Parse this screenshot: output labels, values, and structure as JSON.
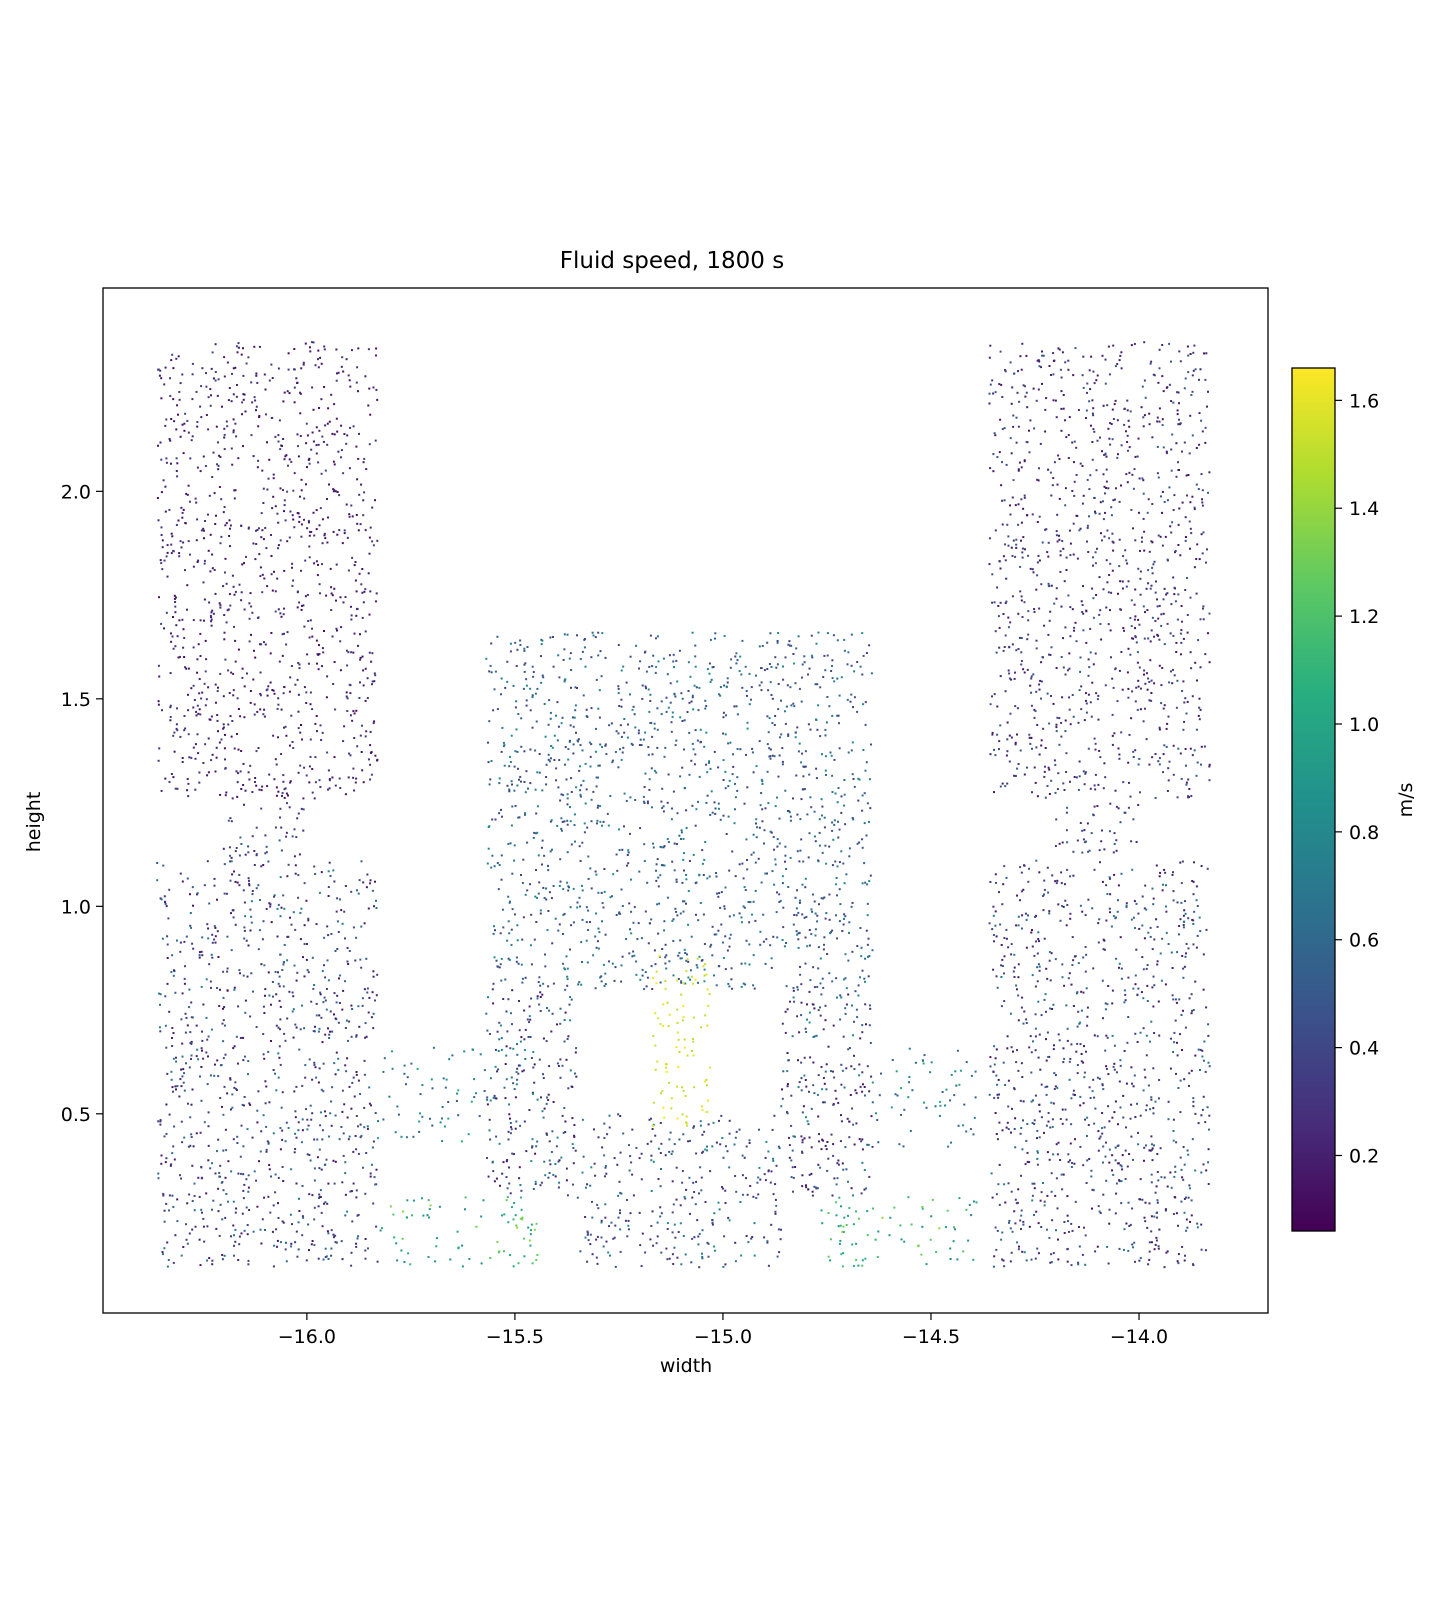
{
  "chart_data": {
    "type": "scatter",
    "title": "Fluid speed, 1800 s",
    "xlabel": "width",
    "ylabel": "height",
    "xlim": [
      -16.49,
      -13.69
    ],
    "ylim": [
      0.02,
      2.49
    ],
    "xticks": [
      -16.0,
      -15.5,
      -15.0,
      -14.5,
      -14.0
    ],
    "xtick_labels": [
      "−16.0",
      "−15.5",
      "−15.0",
      "−14.5",
      "−14.0"
    ],
    "yticks": [
      0.5,
      1.0,
      1.5,
      2.0
    ],
    "ytick_labels": [
      "0.5",
      "1.0",
      "1.5",
      "2.0"
    ],
    "grid": false,
    "colorbar": {
      "label": "m/s",
      "colormap": "viridis",
      "range": [
        0.06,
        1.66
      ],
      "ticks": [
        0.2,
        0.4,
        0.6,
        0.8,
        1.0,
        1.2,
        1.4,
        1.6
      ],
      "tick_labels": [
        "0.2",
        "0.4",
        "0.6",
        "0.8",
        "1.0",
        "1.2",
        "1.4",
        "1.6"
      ]
    },
    "regions": [
      {
        "name": "left-upper-tank",
        "x": [
          -16.36,
          -15.83
        ],
        "y": [
          1.26,
          2.36
        ],
        "density": 2600,
        "speed_range": [
          0.12,
          0.4
        ]
      },
      {
        "name": "left-neck",
        "x": [
          -16.2,
          -16.0
        ],
        "y": [
          1.11,
          1.25
        ],
        "density": 2400,
        "speed_range": [
          0.2,
          0.6
        ]
      },
      {
        "name": "left-lower-tank",
        "x": [
          -16.36,
          -15.83
        ],
        "y": [
          0.13,
          1.11
        ],
        "density": 2600,
        "speed_range": [
          0.15,
          0.75
        ]
      },
      {
        "name": "left-upper-duct",
        "x": [
          -15.83,
          -15.57
        ],
        "y": [
          0.42,
          0.66
        ],
        "density": 1400,
        "speed_range": [
          0.5,
          1.05
        ]
      },
      {
        "name": "left-lower-duct",
        "x": [
          -15.83,
          -15.57
        ],
        "y": [
          0.13,
          0.3
        ],
        "density": 1400,
        "speed_range": [
          0.8,
          1.45
        ]
      },
      {
        "name": "center-top-block",
        "x": [
          -15.57,
          -14.64
        ],
        "y": [
          0.8,
          1.66
        ],
        "density": 2600,
        "speed_range": [
          0.35,
          0.85
        ]
      },
      {
        "name": "center-left-column",
        "x": [
          -15.57,
          -15.35
        ],
        "y": [
          0.3,
          0.8
        ],
        "density": 3000,
        "speed_range": [
          0.15,
          0.85
        ]
      },
      {
        "name": "center-right-column",
        "x": [
          -14.86,
          -14.64
        ],
        "y": [
          0.3,
          0.8
        ],
        "density": 3000,
        "speed_range": [
          0.15,
          0.85
        ]
      },
      {
        "name": "center-bottom-band",
        "x": [
          -15.35,
          -14.86
        ],
        "y": [
          0.13,
          0.5
        ],
        "density": 2400,
        "speed_range": [
          0.25,
          0.85
        ]
      },
      {
        "name": "center-jet",
        "x": [
          -15.17,
          -15.03
        ],
        "y": [
          0.47,
          0.88
        ],
        "density": 2200,
        "speed_range": [
          1.5,
          1.66
        ]
      },
      {
        "name": "right-upper-duct",
        "x": [
          -14.64,
          -14.38
        ],
        "y": [
          0.42,
          0.66
        ],
        "density": 1400,
        "speed_range": [
          0.5,
          1.05
        ]
      },
      {
        "name": "right-lower-duct",
        "x": [
          -14.64,
          -14.38
        ],
        "y": [
          0.13,
          0.3
        ],
        "density": 1400,
        "speed_range": [
          0.8,
          1.45
        ]
      },
      {
        "name": "right-upper-tank",
        "x": [
          -14.36,
          -13.83
        ],
        "y": [
          1.26,
          2.36
        ],
        "density": 2600,
        "speed_range": [
          0.15,
          0.55
        ]
      },
      {
        "name": "right-neck",
        "x": [
          -14.2,
          -14.0
        ],
        "y": [
          1.11,
          1.25
        ],
        "density": 2400,
        "speed_range": [
          0.2,
          0.6
        ]
      },
      {
        "name": "right-lower-tank",
        "x": [
          -14.36,
          -13.83
        ],
        "y": [
          0.13,
          1.11
        ],
        "density": 2600,
        "speed_range": [
          0.15,
          0.75
        ]
      },
      {
        "name": "left-corner-hotspot",
        "x": [
          -15.56,
          -15.44
        ],
        "y": [
          0.13,
          0.3
        ],
        "density": 2600,
        "speed_range": [
          0.9,
          1.4
        ]
      },
      {
        "name": "right-corner-hotspot",
        "x": [
          -14.77,
          -14.65
        ],
        "y": [
          0.13,
          0.3
        ],
        "density": 2600,
        "speed_range": [
          0.9,
          1.4
        ]
      }
    ]
  }
}
